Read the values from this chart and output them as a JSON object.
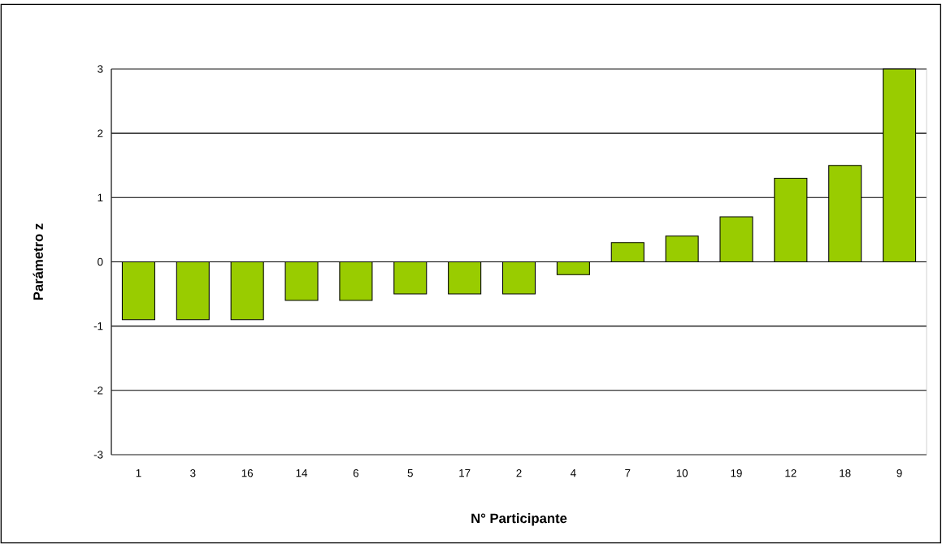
{
  "chart_data": {
    "type": "bar",
    "xlabel": "N° Participante",
    "ylabel": "Parámetro z",
    "categories": [
      "1",
      "3",
      "16",
      "14",
      "6",
      "5",
      "17",
      "2",
      "4",
      "7",
      "10",
      "19",
      "12",
      "18",
      "9"
    ],
    "values": [
      -0.9,
      -0.9,
      -0.9,
      -0.6,
      -0.6,
      -0.5,
      -0.5,
      -0.5,
      -0.2,
      0.3,
      0.4,
      0.7,
      1.3,
      1.5,
      3
    ],
    "color": "#99cc00",
    "ylim": [
      -3,
      3
    ],
    "yticks": [
      -3,
      -2,
      -1,
      0,
      1,
      2,
      3
    ],
    "grid": "y"
  }
}
